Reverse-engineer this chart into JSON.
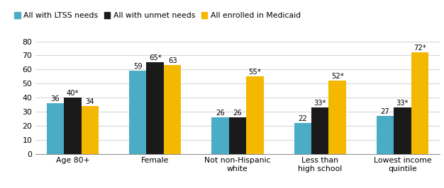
{
  "categories": [
    "Age 80+",
    "Female",
    "Not non-Hispanic\nwhite",
    "Less than\nhigh school",
    "Lowest income\nquintile"
  ],
  "series": [
    {
      "label": "All with LTSS needs",
      "color": "#4bacc6",
      "values": [
        36,
        59,
        26,
        22,
        27
      ]
    },
    {
      "label": "All with unmet needs",
      "color": "#1a1a1a",
      "values": [
        40,
        65,
        26,
        33,
        33
      ]
    },
    {
      "label": "All enrolled in Medicaid",
      "color": "#f5b800",
      "values": [
        34,
        63,
        55,
        52,
        72
      ]
    }
  ],
  "bar_labels": [
    [
      "36",
      "40*",
      "34"
    ],
    [
      "59",
      "65*",
      "63"
    ],
    [
      "26",
      "26",
      "55*"
    ],
    [
      "22",
      "33*",
      "52*"
    ],
    [
      "27",
      "33*",
      "72*"
    ]
  ],
  "ylim": [
    0,
    80
  ],
  "yticks": [
    0,
    10,
    20,
    30,
    40,
    50,
    60,
    70,
    80
  ],
  "bar_width": 0.21,
  "grid_color": "#cccccc",
  "background_color": "#ffffff",
  "label_fontsize": 7.2,
  "tick_fontsize": 7.8,
  "legend_fontsize": 7.8
}
